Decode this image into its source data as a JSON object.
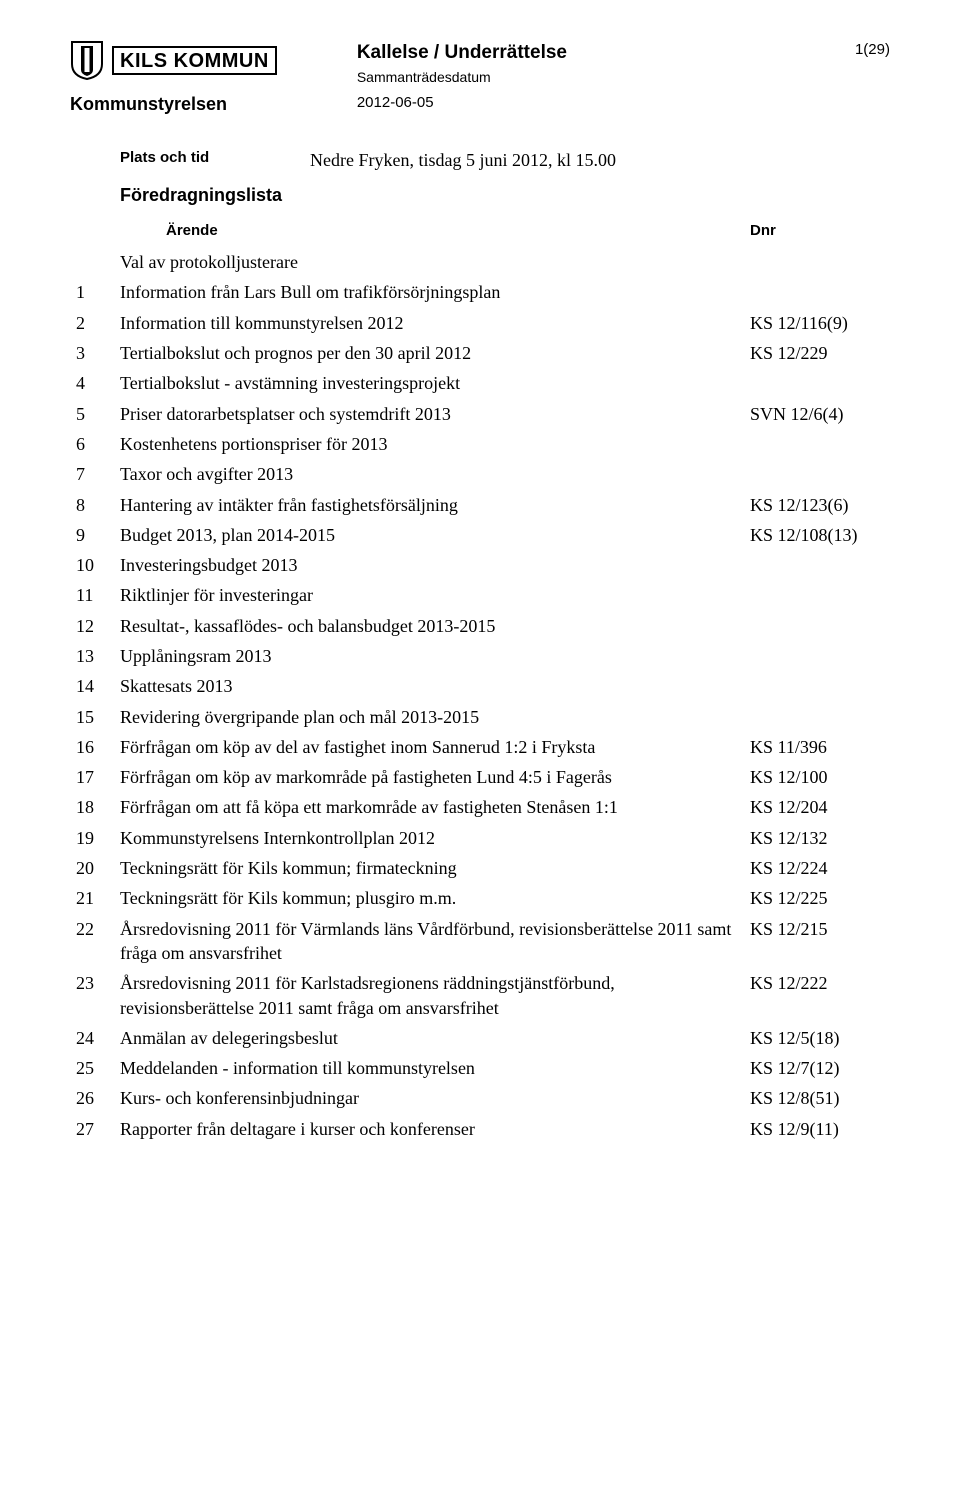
{
  "header": {
    "logo_text": "KILS KOMMUN",
    "issuer": "Kommunstyrelsen",
    "doc_title": "Kallelse / Underrättelse",
    "meeting_date_label": "Sammanträdesdatum",
    "meeting_date": "2012-06-05",
    "page_num": "1(29)"
  },
  "plats": {
    "label": "Plats och tid",
    "value": "Nedre Fryken, tisdag 5 juni 2012, kl 15.00"
  },
  "section_heading": "Föredragningslista",
  "columns": {
    "num": "",
    "title": "Ärende",
    "dnr": "Dnr"
  },
  "preitem": {
    "title": "Val av protokolljusterare"
  },
  "items": [
    {
      "num": "1",
      "title": "Information från Lars Bull om trafikförsörjningsplan",
      "dnr": ""
    },
    {
      "num": "2",
      "title": "Information till kommunstyrelsen 2012",
      "dnr": "KS 12/116(9)"
    },
    {
      "num": "3",
      "title": "Tertialbokslut och prognos per den 30 april 2012",
      "dnr": "KS 12/229"
    },
    {
      "num": "4",
      "title": "Tertialbokslut - avstämning investeringsprojekt",
      "dnr": ""
    },
    {
      "num": "5",
      "title": "Priser datorarbetsplatser och systemdrift 2013",
      "dnr": "SVN 12/6(4)"
    },
    {
      "num": "6",
      "title": "Kostenhetens portionspriser för 2013",
      "dnr": ""
    },
    {
      "num": "7",
      "title": "Taxor och avgifter 2013",
      "dnr": ""
    },
    {
      "num": "8",
      "title": "Hantering av intäkter från fastighetsförsäljning",
      "dnr": "KS 12/123(6)"
    },
    {
      "num": "9",
      "title": "Budget 2013, plan 2014-2015",
      "dnr": "KS 12/108(13)"
    },
    {
      "num": "10",
      "title": "Investeringsbudget 2013",
      "dnr": ""
    },
    {
      "num": "11",
      "title": "Riktlinjer för investeringar",
      "dnr": ""
    },
    {
      "num": "12",
      "title": "Resultat-, kassaflödes- och balansbudget 2013-2015",
      "dnr": ""
    },
    {
      "num": "13",
      "title": "Upplåningsram 2013",
      "dnr": ""
    },
    {
      "num": "14",
      "title": "Skattesats 2013",
      "dnr": ""
    },
    {
      "num": "15",
      "title": "Revidering övergripande plan och mål 2013-2015",
      "dnr": ""
    },
    {
      "num": "16",
      "title": "Förfrågan om köp av del av fastighet inom Sannerud 1:2 i Fryksta",
      "dnr": "KS 11/396"
    },
    {
      "num": "17",
      "title": "Förfrågan om köp av markområde på fastigheten Lund 4:5 i Fagerås",
      "dnr": "KS 12/100"
    },
    {
      "num": "18",
      "title": "Förfrågan om att få köpa ett markområde av fastigheten Stenåsen 1:1",
      "dnr": "KS 12/204"
    },
    {
      "num": "19",
      "title": "Kommunstyrelsens Internkontrollplan 2012",
      "dnr": "KS 12/132"
    },
    {
      "num": "20",
      "title": "Teckningsrätt för Kils kommun; firmateckning",
      "dnr": "KS 12/224"
    },
    {
      "num": "21",
      "title": "Teckningsrätt för Kils kommun; plusgiro m.m.",
      "dnr": "KS 12/225"
    },
    {
      "num": "22",
      "title": "Årsredovisning 2011 för Värmlands läns Vårdförbund, revisionsberättelse 2011 samt fråga om ansvarsfrihet",
      "dnr": "KS 12/215"
    },
    {
      "num": "23",
      "title": "Årsredovisning 2011 för Karlstadsregionens räddningstjänstförbund, revisionsberättelse 2011 samt fråga om ansvarsfrihet",
      "dnr": "KS 12/222"
    },
    {
      "num": "24",
      "title": "Anmälan av delegeringsbeslut",
      "dnr": "KS 12/5(18)"
    },
    {
      "num": "25",
      "title": "Meddelanden - information till kommunstyrelsen",
      "dnr": "KS 12/7(12)"
    },
    {
      "num": "26",
      "title": "Kurs- och konferensinbjudningar",
      "dnr": "KS 12/8(51)"
    },
    {
      "num": "27",
      "title": "Rapporter från deltagare i kurser och konferenser",
      "dnr": "KS 12/9(11)"
    }
  ]
}
